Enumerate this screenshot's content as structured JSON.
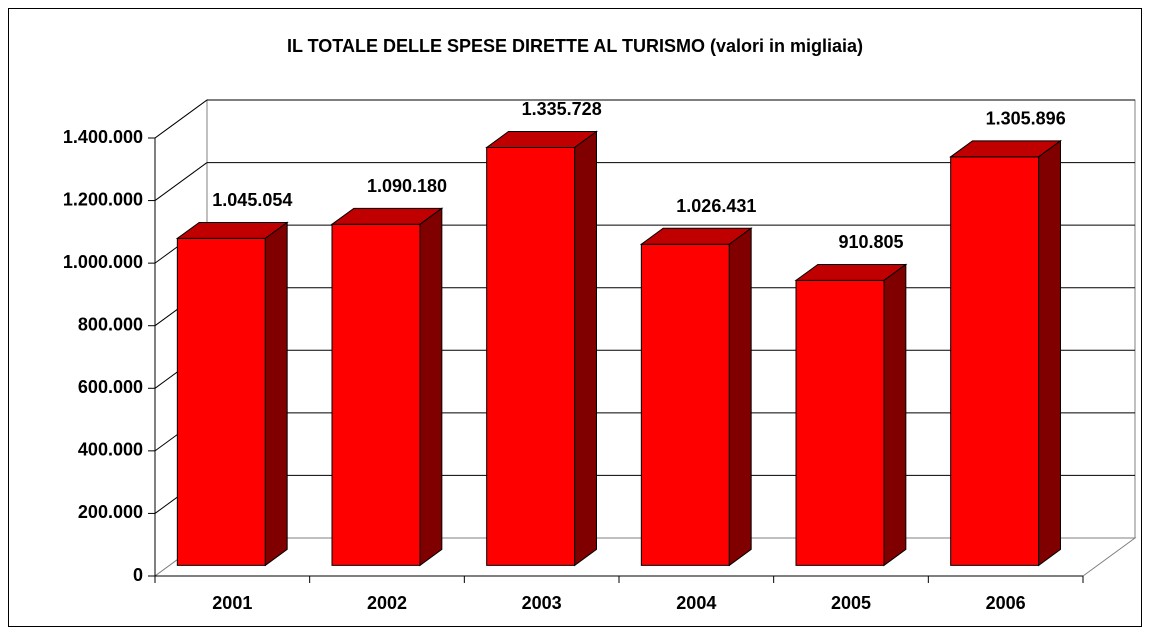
{
  "chart_data": {
    "type": "bar3d",
    "title": "IL TOTALE DELLE SPESE DIRETTE AL TURISMO (valori in migliaia)",
    "categories": [
      "2001",
      "2002",
      "2003",
      "2004",
      "2005",
      "2006"
    ],
    "values": [
      1045054,
      1090180,
      1335728,
      1026431,
      910805,
      1305896
    ],
    "value_labels": [
      "1.045.054",
      "1.090.180",
      "1.335.728",
      "1.026.431",
      "910.805",
      "1.305.896"
    ],
    "color": "#ff0000",
    "ylim": [
      0,
      1400000
    ],
    "yticks": [
      0,
      {
        "value": 200000,
        "label": "200.000"
      },
      {
        "value": 400000,
        "label": "400.000"
      },
      {
        "value": 600000,
        "label": "600.000"
      },
      {
        "value": 800000,
        "label": "800.000"
      },
      {
        "value": 1000000,
        "label": "1.000.000"
      },
      {
        "value": 1200000,
        "label": "1.200.000"
      },
      {
        "value": 1400000,
        "label": "1.400.000"
      }
    ],
    "grid": true
  }
}
